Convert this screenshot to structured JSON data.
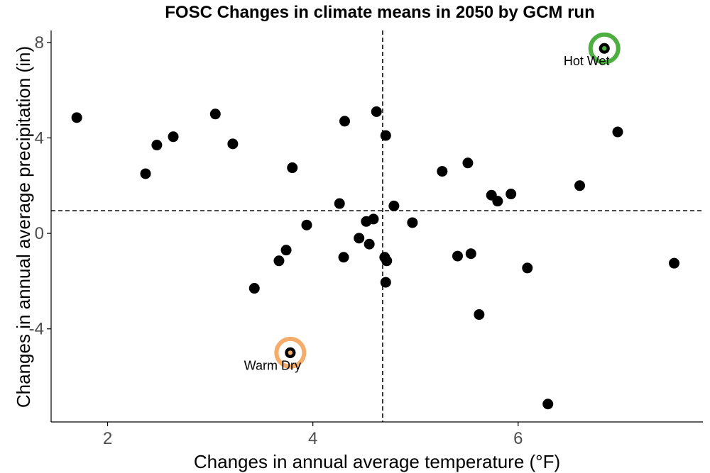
{
  "chart_data": {
    "type": "scatter",
    "title": "FOSC Changes in climate means in 2050 by GCM run",
    "xlabel": "Changes in annual average temperature (°F)",
    "ylabel": "Changes in annual average precipitation (in)",
    "xlim": [
      1.45,
      7.8
    ],
    "ylim": [
      -7.9,
      8.5
    ],
    "xticks": [
      2,
      4,
      6
    ],
    "yticks": [
      -4,
      0,
      4,
      8
    ],
    "x_tick_labels": [
      "2",
      "4",
      "6"
    ],
    "y_tick_labels": [
      "-4",
      "0",
      "4",
      "8"
    ],
    "grid": false,
    "reference_lines": {
      "x": 4.68,
      "y": 0.95
    },
    "points": [
      {
        "x": 1.7,
        "y": 4.85
      },
      {
        "x": 2.37,
        "y": 2.5
      },
      {
        "x": 2.48,
        "y": 3.7
      },
      {
        "x": 2.64,
        "y": 4.05
      },
      {
        "x": 3.05,
        "y": 5.0
      },
      {
        "x": 3.22,
        "y": 3.75
      },
      {
        "x": 3.43,
        "y": -2.3
      },
      {
        "x": 3.67,
        "y": -1.15
      },
      {
        "x": 3.74,
        "y": -0.7
      },
      {
        "x": 3.8,
        "y": 2.75
      },
      {
        "x": 3.94,
        "y": 0.35
      },
      {
        "x": 4.26,
        "y": 1.25
      },
      {
        "x": 4.3,
        "y": -1.0
      },
      {
        "x": 4.31,
        "y": 4.7
      },
      {
        "x": 4.45,
        "y": -0.2
      },
      {
        "x": 4.52,
        "y": 0.5
      },
      {
        "x": 4.55,
        "y": -0.45
      },
      {
        "x": 4.59,
        "y": 0.6
      },
      {
        "x": 4.62,
        "y": 5.1
      },
      {
        "x": 4.7,
        "y": -1.0
      },
      {
        "x": 4.71,
        "y": 4.1
      },
      {
        "x": 4.72,
        "y": -1.15
      },
      {
        "x": 4.71,
        "y": -2.05
      },
      {
        "x": 4.79,
        "y": 1.15
      },
      {
        "x": 4.97,
        "y": 0.45
      },
      {
        "x": 5.26,
        "y": 2.6
      },
      {
        "x": 5.41,
        "y": -0.95
      },
      {
        "x": 5.51,
        "y": 2.95
      },
      {
        "x": 5.54,
        "y": -0.85
      },
      {
        "x": 5.62,
        "y": -3.4
      },
      {
        "x": 5.74,
        "y": 1.6
      },
      {
        "x": 5.8,
        "y": 1.35
      },
      {
        "x": 5.93,
        "y": 1.65
      },
      {
        "x": 6.09,
        "y": -1.45
      },
      {
        "x": 6.29,
        "y": -7.15
      },
      {
        "x": 6.6,
        "y": 2.0
      },
      {
        "x": 6.97,
        "y": 4.25
      },
      {
        "x": 7.52,
        "y": -1.25
      },
      {
        "x": 3.78,
        "y": -5.0
      },
      {
        "x": 6.84,
        "y": 7.75
      }
    ],
    "highlights": [
      {
        "label": "Warm Dry",
        "x": 3.78,
        "y": -5.0,
        "color": "#f5ad6b"
      },
      {
        "label": "Hot Wet",
        "x": 6.84,
        "y": 7.75,
        "color": "#4caf3f"
      }
    ],
    "colors": {
      "points": "#000000",
      "axis": "#000000",
      "tick_text": "#4d4d4d"
    }
  }
}
